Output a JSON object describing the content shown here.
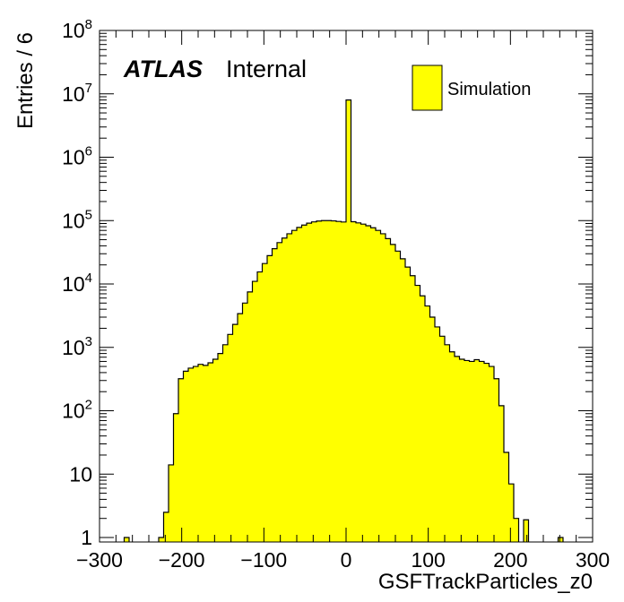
{
  "chart_data": {
    "type": "bar",
    "title": "",
    "xlabel": "GSFTrackParticles_z0",
    "ylabel": "Entries / 6",
    "xlim": [
      -300,
      300
    ],
    "ylim": [
      0.85,
      100000000
    ],
    "yscale": "log",
    "bin_width": 6,
    "x_ticks": [
      -300,
      -200,
      -100,
      0,
      100,
      200,
      300
    ],
    "x_tick_labels": [
      "−300",
      "−200",
      "−100",
      "0",
      "100",
      "200",
      "300"
    ],
    "y_ticks": [
      1,
      10,
      100,
      1000,
      10000,
      100000,
      1000000,
      10000000,
      100000000
    ],
    "y_tick_labels": [
      {
        "base": "1",
        "exp": ""
      },
      {
        "base": "10",
        "exp": ""
      },
      {
        "base": "10",
        "exp": "2"
      },
      {
        "base": "10",
        "exp": "3"
      },
      {
        "base": "10",
        "exp": "4"
      },
      {
        "base": "10",
        "exp": "5"
      },
      {
        "base": "10",
        "exp": "6"
      },
      {
        "base": "10",
        "exp": "7"
      },
      {
        "base": "10",
        "exp": "8"
      }
    ],
    "atlas_label": "ATLAS",
    "atlas_sublabel": "Internal",
    "grid": false,
    "legend_position": "top-right",
    "series": [
      {
        "name": "Simulation",
        "color": "#ffff00",
        "edge_color": "#000000",
        "bin_edges_low": [
          -270,
          -228,
          -222,
          -216,
          -210,
          -204,
          -198,
          -192,
          -186,
          -180,
          -174,
          -168,
          -162,
          -156,
          -150,
          -144,
          -138,
          -132,
          -126,
          -120,
          -114,
          -108,
          -102,
          -96,
          -90,
          -84,
          -78,
          -72,
          -66,
          -60,
          -54,
          -48,
          -42,
          -36,
          -30,
          -24,
          -18,
          -12,
          -6,
          0,
          6,
          12,
          18,
          24,
          30,
          36,
          42,
          48,
          54,
          60,
          66,
          72,
          78,
          84,
          90,
          96,
          102,
          108,
          114,
          120,
          126,
          132,
          138,
          144,
          150,
          156,
          162,
          168,
          174,
          180,
          186,
          192,
          198,
          204,
          216,
          258
        ],
        "values": [
          1,
          1,
          2.5,
          14,
          90,
          320,
          420,
          470,
          500,
          540,
          520,
          570,
          650,
          800,
          1100,
          1600,
          2300,
          3400,
          5000,
          7500,
          11000,
          15500,
          21000,
          28000,
          36000,
          45000,
          53000,
          62000,
          70000,
          78000,
          85000,
          91000,
          95500,
          98500,
          100000,
          100000,
          99000,
          97000,
          95000,
          8000000,
          96000,
          92000,
          88000,
          83000,
          77000,
          70000,
          62000,
          52000,
          42000,
          33000,
          25000,
          18500,
          13500,
          9500,
          6500,
          4500,
          3000,
          2100,
          1500,
          1100,
          850,
          720,
          650,
          620,
          600,
          640,
          600,
          560,
          500,
          320,
          120,
          22,
          7,
          2,
          1.9,
          1
        ]
      }
    ]
  }
}
